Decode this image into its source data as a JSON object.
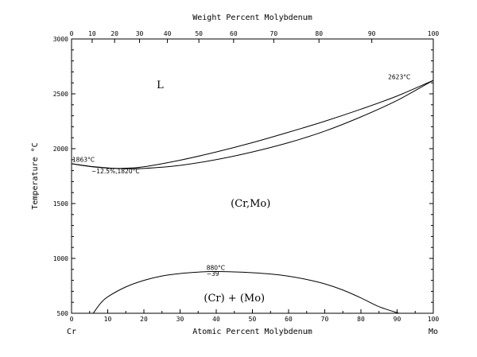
{
  "chart_data": {
    "type": "line",
    "xlabel": "Atomic Percent Molybdenum",
    "x2label": "Weight Percent Molybdenum",
    "ylabel": "Temperature °C",
    "xlim": [
      0,
      100
    ],
    "ylim": [
      500,
      3000
    ],
    "grid": false,
    "x_ticks": [
      0,
      10,
      20,
      30,
      40,
      50,
      60,
      70,
      80,
      90,
      100
    ],
    "y_ticks": [
      500,
      1000,
      1500,
      2000,
      2500,
      3000
    ],
    "top_ticks": [
      {
        "wt": 0,
        "at": 0
      },
      {
        "wt": 10,
        "at": 5.7
      },
      {
        "wt": 20,
        "at": 11.9
      },
      {
        "wt": 30,
        "at": 18.8
      },
      {
        "wt": 40,
        "at": 26.5
      },
      {
        "wt": 50,
        "at": 35.2
      },
      {
        "wt": 60,
        "at": 44.8
      },
      {
        "wt": 70,
        "at": 55.9
      },
      {
        "wt": 80,
        "at": 68.4
      },
      {
        "wt": 90,
        "at": 83.0
      },
      {
        "wt": 100,
        "at": 100
      }
    ],
    "element_left": "Cr",
    "element_right": "Mo",
    "series": [
      {
        "name": "liquidus",
        "x": [
          0,
          5,
          10,
          12.5,
          15,
          20,
          30,
          40,
          50,
          60,
          70,
          80,
          90,
          100
        ],
        "y": [
          1863,
          1840,
          1825,
          1820,
          1822,
          1835,
          1895,
          1970,
          2055,
          2150,
          2250,
          2360,
          2480,
          2623
        ]
      },
      {
        "name": "solidus",
        "x": [
          0,
          5,
          10,
          12.5,
          15,
          20,
          30,
          40,
          50,
          60,
          70,
          80,
          90,
          100
        ],
        "y": [
          1863,
          1838,
          1823,
          1820,
          1818,
          1820,
          1848,
          1900,
          1970,
          2055,
          2160,
          2290,
          2440,
          2623
        ]
      },
      {
        "name": "miscibility gap",
        "x": [
          6,
          8,
          10,
          15,
          20,
          25,
          30,
          35,
          39,
          45,
          50,
          55,
          60,
          65,
          70,
          75,
          80,
          85,
          90.5
        ],
        "y": [
          500,
          590,
          650,
          740,
          800,
          840,
          862,
          875,
          880,
          877,
          870,
          858,
          838,
          808,
          768,
          712,
          640,
          560,
          500
        ]
      }
    ],
    "phase_labels": [
      {
        "text": "L",
        "x": 24.5,
        "y": 2550
      },
      {
        "text": "(Cr,Mo)",
        "x": 49.5,
        "y": 1470
      },
      {
        "text": "(Cr) + (Mo)",
        "x": 45,
        "y": 610
      }
    ],
    "annotations": [
      {
        "text": "1863°C",
        "x": 0.2,
        "y": 1880
      },
      {
        "text": "~12.5%,1820°C",
        "x": 5.5,
        "y": 1775
      },
      {
        "text": "2623°C",
        "x": 87.5,
        "y": 2635
      },
      {
        "text": "880°C",
        "x": 37.3,
        "y": 895
      },
      {
        "text": "~39",
        "x": 37.3,
        "y": 840
      }
    ]
  }
}
